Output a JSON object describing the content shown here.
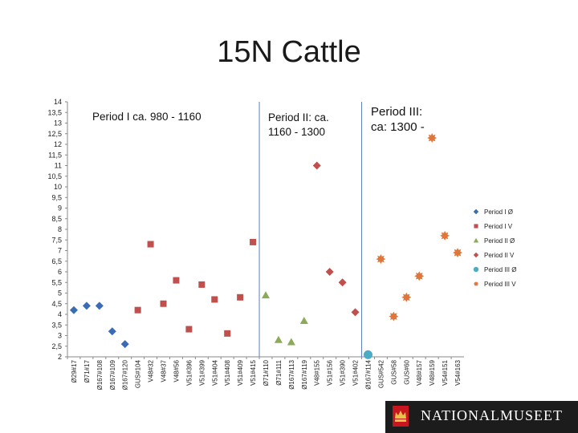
{
  "slide": {
    "title": "15N Cattle",
    "brand": "NATIONALMUSEET"
  },
  "chart_data": {
    "type": "scatter",
    "title": "15N Cattle",
    "xlabel": "",
    "ylabel": "",
    "ylim": [
      2,
      14
    ],
    "yticks": [
      "2",
      "2,5",
      "3",
      "3,5",
      "4",
      "4,5",
      "5",
      "5,5",
      "6",
      "6,5",
      "7",
      "7,5",
      "8",
      "8,5",
      "9",
      "9,5",
      "10",
      "10,5",
      "11",
      "11,5",
      "12",
      "12,5",
      "13",
      "13,5",
      "14"
    ],
    "categories": [
      "Ø29#17",
      "Ø71#17",
      "Ø167#108",
      "Ø167#109",
      "Ø167#120",
      "GUS#104",
      "V48#32",
      "V48#37",
      "V48#56",
      "V51#396",
      "V51#399",
      "V51#404",
      "V51#408",
      "V51#409",
      "V51#415",
      "Ø71#110",
      "Ø71#111",
      "Ø167#113",
      "Ø167#119",
      "V48#155",
      "V51#156",
      "V51#390",
      "V51#402",
      "Ø167#114",
      "GUS#542",
      "GUS#58",
      "GUS#60",
      "V48#157",
      "V48#159",
      "V54#151",
      "V54#163"
    ],
    "grid": false,
    "legend_position": "right",
    "period_labels": [
      "Period I ca. 980 - 1160",
      "Period II: ca. 1160 - 1300",
      "Period III: ca: 1300 -"
    ],
    "series": [
      {
        "name": "Period I Ø",
        "color": "#3a6cb4",
        "marker": "diamond",
        "points": [
          [
            "Ø29#17",
            4.2
          ],
          [
            "Ø71#17",
            4.4
          ],
          [
            "Ø167#108",
            4.4
          ],
          [
            "Ø167#109",
            3.2
          ],
          [
            "Ø167#120",
            2.6
          ]
        ]
      },
      {
        "name": "Period I V",
        "color": "#c0504d",
        "marker": "square",
        "points": [
          [
            "GUS#104",
            4.2
          ],
          [
            "V48#32",
            7.3
          ],
          [
            "V48#37",
            4.5
          ],
          [
            "V48#56",
            5.6
          ],
          [
            "V51#396",
            3.3
          ],
          [
            "V51#399",
            5.4
          ],
          [
            "V51#404",
            4.7
          ],
          [
            "V51#408",
            3.1
          ],
          [
            "V51#409",
            4.8
          ],
          [
            "V51#415",
            7.4
          ]
        ]
      },
      {
        "name": "Period II Ø",
        "color": "#8bab5a",
        "marker": "triangle",
        "points": [
          [
            "Ø71#110",
            4.9
          ],
          [
            "Ø71#111",
            2.8
          ],
          [
            "Ø167#113",
            2.7
          ],
          [
            "Ø167#119",
            3.7
          ]
        ]
      },
      {
        "name": "Period II V",
        "color": "#c0504d",
        "marker": "diamond",
        "points": [
          [
            "V48#155",
            11.0
          ],
          [
            "V51#156",
            6.0
          ],
          [
            "V51#390",
            5.5
          ],
          [
            "V51#402",
            4.1
          ]
        ]
      },
      {
        "name": "Period III Ø",
        "color": "#4bacc6",
        "marker": "circle",
        "points": [
          [
            "Ø167#114",
            2.1
          ]
        ]
      },
      {
        "name": "Period III V",
        "color": "#e0773a",
        "marker": "star",
        "points": [
          [
            "GUS#542",
            6.6
          ],
          [
            "GUS#58",
            3.9
          ],
          [
            "GUS#60",
            4.8
          ],
          [
            "V48#157",
            5.8
          ],
          [
            "V48#159",
            12.3
          ],
          [
            "V54#151",
            7.7
          ],
          [
            "V54#163",
            6.9
          ]
        ]
      }
    ]
  },
  "icons": {
    "brand_crown": "crown-icon"
  }
}
